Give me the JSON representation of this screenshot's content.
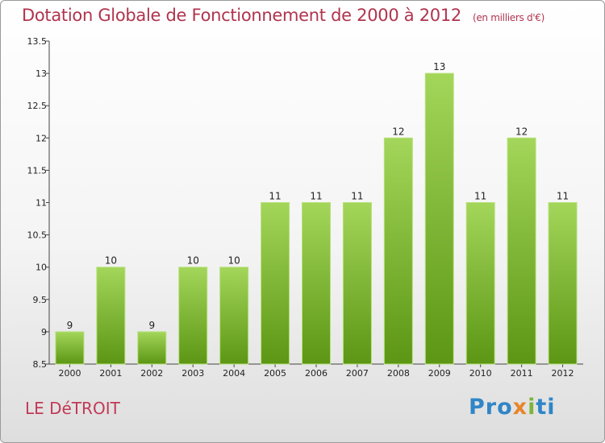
{
  "header": {
    "title": "Dotation Globale de Fonctionnement de 2000 à 2012",
    "unit": "(en milliers d'€)"
  },
  "footer": {
    "city": "LE DéTROIT",
    "brand": [
      "Pro",
      "x",
      "i",
      "ti"
    ]
  },
  "colors": {
    "bar_top": "#a3d65a",
    "bar_bottom": "#5c9614",
    "title": "#b0344d"
  },
  "chart_data": {
    "type": "bar",
    "title": "Dotation Globale de Fonctionnement de 2000 à 2012",
    "xlabel": "",
    "ylabel": "",
    "categories": [
      "2000",
      "2001",
      "2002",
      "2003",
      "2004",
      "2005",
      "2006",
      "2007",
      "2008",
      "2009",
      "2010",
      "2011",
      "2012"
    ],
    "values": [
      9,
      10,
      9,
      10,
      10,
      11,
      11,
      11,
      12,
      13,
      11,
      12,
      11
    ],
    "data_labels": [
      "9",
      "10",
      "9",
      "10",
      "10",
      "11",
      "11",
      "11",
      "12",
      "13",
      "11",
      "12",
      "11"
    ],
    "ylim": [
      8.5,
      13.5
    ],
    "yticks": [
      "8.5",
      "9",
      "9.5",
      "10",
      "10.5",
      "11",
      "11.5",
      "12",
      "12.5",
      "13",
      "13.5"
    ],
    "grid": false,
    "legend": "none"
  }
}
